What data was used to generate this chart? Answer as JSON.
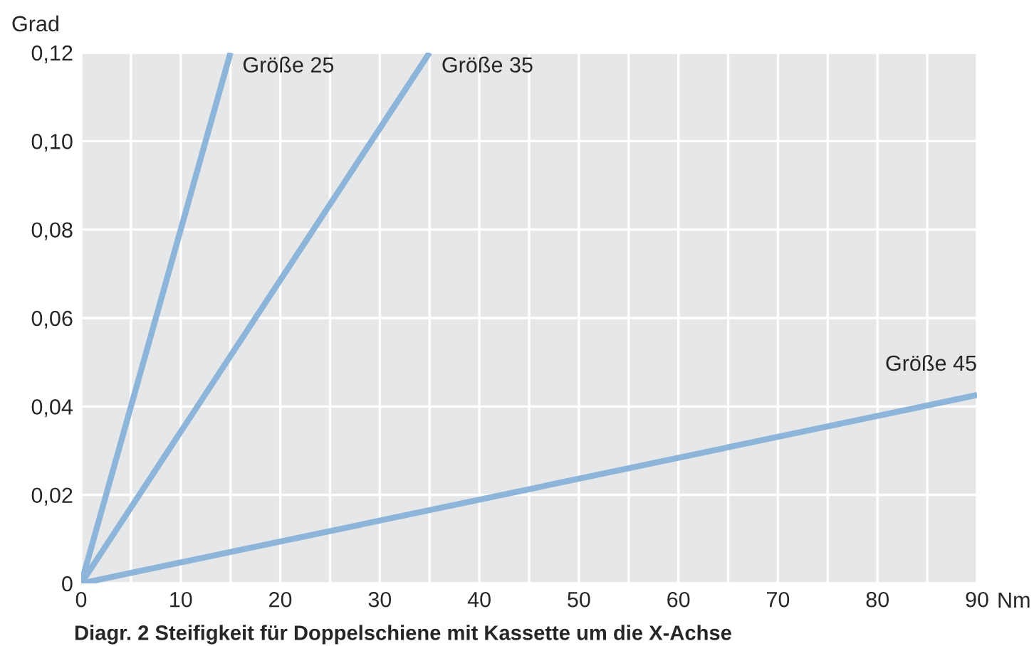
{
  "chart_data": {
    "type": "line",
    "ylabel": "Grad",
    "xlabel": "Nm",
    "annotations": [
      {
        "text": "Größe 25",
        "x": 15,
        "y": 0.12
      },
      {
        "text": "Größe 35",
        "x": 35,
        "y": 0.12
      },
      {
        "text": "Größe 45",
        "x": 90,
        "y": 0.0426
      },
      "Diagr. 2 Steifigkeit für Doppelschiene mit Kassette um die X-Achse"
    ],
    "series": [
      {
        "color": "#8db4d9",
        "x": [
          0,
          15
        ],
        "values": [
          0,
          0.12
        ]
      },
      {
        "color": "#8db4d9",
        "x": [
          0,
          35
        ],
        "values": [
          0,
          0.12
        ]
      },
      {
        "color": "#8db4d9",
        "x": [
          0,
          90
        ],
        "values": [
          0,
          0.0426
        ]
      }
    ],
    "xlim": [
      0,
      90
    ],
    "ylim": [
      0,
      0.12
    ],
    "xticks": [
      0,
      {
        "value": 5,
        "label": null
      },
      10,
      {
        "value": 15,
        "label": null
      },
      20,
      {
        "value": 25,
        "label": null
      },
      30,
      {
        "value": 35,
        "label": null
      },
      40,
      {
        "value": 45,
        "label": null
      },
      50,
      {
        "value": 55,
        "label": null
      },
      60,
      {
        "value": 65,
        "label": null
      },
      70,
      {
        "value": 75,
        "label": null
      },
      80,
      {
        "value": 85,
        "label": null
      },
      90
    ],
    "yticks": [
      0,
      {
        "value": 0.02,
        "label": "0,02"
      },
      {
        "value": 0.04,
        "label": "0,04"
      },
      {
        "value": 0.06,
        "label": "0,06"
      },
      {
        "value": 0.08,
        "label": "0,08"
      },
      {
        "value": 0.1,
        "label": "0,10"
      },
      {
        "value": 0.12,
        "label": "0,12"
      }
    ],
    "grid": true,
    "legend": false,
    "marker": "none",
    "line_style": "solid"
  }
}
